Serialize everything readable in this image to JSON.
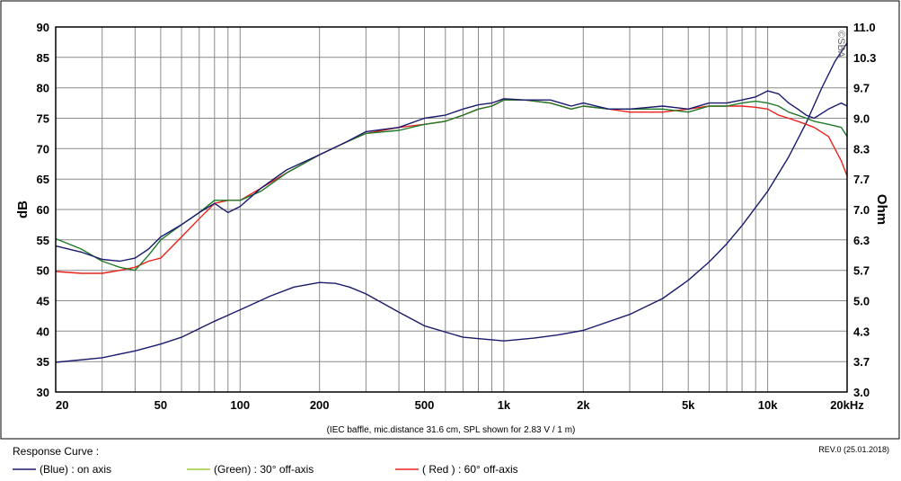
{
  "chart_data": {
    "type": "line",
    "caption": "(IEC baffle, mic.distance 31.6 cm, SPL shown for 2.83 V / 1 m)",
    "ylabel": "dB",
    "y2label": "Ohm",
    "watermark": "©SBA",
    "x_scale": "log",
    "xlim": [
      20,
      20000
    ],
    "ylim": [
      30,
      90
    ],
    "y2lim": [
      3.0,
      11.0
    ],
    "grid": true,
    "x_tick_values": [
      20,
      50,
      100,
      200,
      500,
      1000,
      2000,
      5000,
      10000,
      20000
    ],
    "x_tick_labels": [
      "20",
      "50",
      "100",
      "200",
      "500",
      "1k",
      "2k",
      "5k",
      "10k",
      "20kHz"
    ],
    "y_tick_labels": [
      "30",
      "35",
      "40",
      "45",
      "50",
      "55",
      "60",
      "65",
      "70",
      "75",
      "80",
      "85",
      "90"
    ],
    "y2_tick_labels": [
      "3.0",
      "3.7",
      "4.3",
      "5.0",
      "5.7",
      "6.3",
      "7.0",
      "7.7",
      "8.3",
      "9.0",
      "9.7",
      "10.3",
      "11.0"
    ],
    "legend_title": "Response Curve :",
    "legend": [
      {
        "label": "(Blue)  : on axis",
        "color": "#1a1a6e"
      },
      {
        "label": "(Green) : 30° off-axis",
        "color": "#9acd32"
      },
      {
        "label": "( Red ) : 60° off-axis",
        "color": "#e8221b"
      }
    ],
    "revision": "REV.0 (25.01.2018)",
    "series": [
      {
        "color": "#1a1a6e",
        "axis": "left",
        "x": [
          20,
          25,
          30,
          35,
          40,
          45,
          50,
          60,
          70,
          80,
          90,
          100,
          120,
          150,
          200,
          250,
          300,
          400,
          500,
          600,
          700,
          800,
          900,
          1000,
          1200,
          1500,
          1800,
          2000,
          2500,
          3000,
          4000,
          5000,
          6000,
          7000,
          8000,
          9000,
          10000,
          11000,
          12000,
          13000,
          14000,
          15000,
          17000,
          19000,
          20000
        ],
        "values": [
          54,
          53,
          51.8,
          51.5,
          52.0,
          53.5,
          55.5,
          57.5,
          59.5,
          61.0,
          59.5,
          60.5,
          63.5,
          66.5,
          69.0,
          71.0,
          72.8,
          73.5,
          75.0,
          75.5,
          76.5,
          77.2,
          77.5,
          78.2,
          78.0,
          78.0,
          77.0,
          77.5,
          76.5,
          76.5,
          77.0,
          76.5,
          77.5,
          77.5,
          78.0,
          78.5,
          79.5,
          79.0,
          77.5,
          76.5,
          75.5,
          75.0,
          76.5,
          77.5,
          77.0
        ]
      },
      {
        "color": "#1e7a28",
        "axis": "left",
        "x": [
          20,
          25,
          30,
          35,
          40,
          45,
          50,
          60,
          70,
          80,
          90,
          100,
          120,
          150,
          200,
          250,
          300,
          400,
          500,
          600,
          700,
          800,
          900,
          1000,
          1200,
          1500,
          1800,
          2000,
          2500,
          3000,
          4000,
          5000,
          6000,
          7000,
          8000,
          9000,
          10000,
          11000,
          12000,
          13000,
          14000,
          15000,
          17000,
          19000,
          20000
        ],
        "values": [
          55.2,
          53.5,
          51.5,
          50.5,
          50.0,
          52.5,
          55.0,
          57.5,
          59.5,
          61.5,
          61.5,
          61.5,
          63.0,
          66.0,
          69.0,
          71.0,
          72.5,
          73.0,
          74.0,
          74.5,
          75.5,
          76.5,
          77.0,
          78.0,
          78.0,
          77.5,
          76.5,
          77.0,
          76.5,
          76.5,
          76.5,
          76.0,
          77.0,
          77.0,
          77.5,
          77.8,
          77.5,
          77.0,
          76.0,
          75.5,
          75.0,
          74.5,
          74.0,
          73.5,
          72.0
        ]
      },
      {
        "color": "#e8221b",
        "axis": "left",
        "x": [
          20,
          25,
          30,
          35,
          40,
          45,
          50,
          60,
          70,
          80,
          90,
          100,
          120,
          150,
          200,
          250,
          300,
          400,
          500,
          600,
          700,
          800,
          900,
          1000,
          1200,
          1500,
          1800,
          2000,
          2500,
          3000,
          4000,
          5000,
          6000,
          7000,
          8000,
          9000,
          10000,
          11000,
          12000,
          13000,
          14000,
          15000,
          17000,
          19000,
          20000
        ],
        "values": [
          49.8,
          49.5,
          49.5,
          50.0,
          50.5,
          51.5,
          52.0,
          55.5,
          58.5,
          61.0,
          61.5,
          61.5,
          63.5,
          66.0,
          69.0,
          71.0,
          72.5,
          73.5,
          74.0,
          74.5,
          75.5,
          76.5,
          77.0,
          78.0,
          78.0,
          77.5,
          76.5,
          77.0,
          76.5,
          76.0,
          76.0,
          76.5,
          77.0,
          77.0,
          77.0,
          76.8,
          76.5,
          75.5,
          75.0,
          74.5,
          74.0,
          73.5,
          72.0,
          68.0,
          65.5
        ]
      },
      {
        "color": "#1a1a6e",
        "axis": "right",
        "x": [
          20,
          30,
          40,
          50,
          60,
          80,
          100,
          130,
          160,
          200,
          230,
          260,
          300,
          400,
          500,
          700,
          1000,
          1300,
          1600,
          2000,
          3000,
          4000,
          5000,
          6000,
          7000,
          8000,
          10000,
          12000,
          14000,
          16000,
          18000,
          20000
        ],
        "values": [
          3.65,
          3.75,
          3.9,
          4.05,
          4.2,
          4.55,
          4.8,
          5.1,
          5.3,
          5.4,
          5.38,
          5.3,
          5.15,
          4.75,
          4.45,
          4.2,
          4.12,
          4.18,
          4.25,
          4.35,
          4.7,
          5.05,
          5.45,
          5.85,
          6.25,
          6.65,
          7.4,
          8.15,
          8.9,
          9.65,
          10.25,
          10.65
        ]
      }
    ]
  }
}
